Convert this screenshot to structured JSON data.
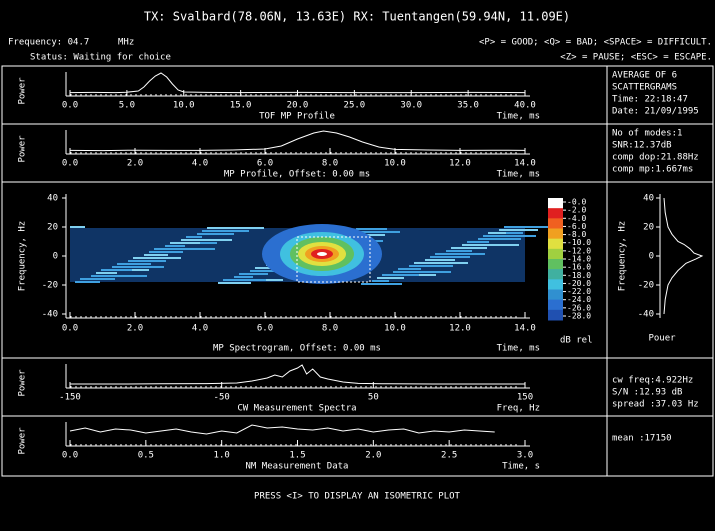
{
  "header": {
    "title": "TX: Svalbard(78.06N, 13.63E)   RX: Tuentangen(59.94N, 11.09E)",
    "frequency": "Frequency: 04.7",
    "frequency_unit": "MHz",
    "status": "Status: Waiting for choice",
    "keys_1": "<P> = GOOD; <Q> = BAD; <SPACE> = DIFFICULT.",
    "keys_2": "<Z> = PAUSE; <ESC> = ESCAPE."
  },
  "panels": [
    {
      "ylabel": "Power",
      "title": "TOF MP Profile",
      "xunit": "Time, ms",
      "xlim": [
        0,
        40
      ],
      "xticks": [
        {
          "value": 0,
          "label": "0.0"
        },
        {
          "value": 5,
          "label": "5.0"
        },
        {
          "value": 10,
          "label": "10.0"
        },
        {
          "value": 15,
          "label": "15.0"
        },
        {
          "value": 20,
          "label": "20.0"
        },
        {
          "value": 25,
          "label": "25.0"
        },
        {
          "value": 30,
          "label": "30.0"
        },
        {
          "value": 35,
          "label": "35.0"
        },
        {
          "value": 40,
          "label": "40.0"
        }
      ],
      "x": [
        0,
        2,
        4,
        5,
        6,
        6.5,
        7,
        7.5,
        8,
        8.5,
        9,
        9.5,
        10,
        12,
        15,
        20,
        25,
        30,
        35,
        40
      ],
      "values": [
        0.02,
        0.03,
        0.02,
        0.04,
        0.1,
        0.3,
        0.6,
        0.85,
        1,
        0.8,
        0.45,
        0.15,
        0.05,
        0.03,
        0.02,
        0.03,
        0.02,
        0.02,
        0.03,
        0.02
      ],
      "info": [
        "AVERAGE OF 6",
        "SCATTERGRAMS",
        "Time: 22:18:47",
        "Date: 21/09/1995"
      ]
    },
    {
      "ylabel": "Power",
      "title": "MP Profile, Offset: 0.00 ms",
      "xunit": "Time, ms",
      "xlim": [
        0,
        14
      ],
      "xticks": [
        {
          "value": 0,
          "label": "0.0"
        },
        {
          "value": 2,
          "label": "2.0"
        },
        {
          "value": 4,
          "label": "4.0"
        },
        {
          "value": 6,
          "label": "6.0"
        },
        {
          "value": 8,
          "label": "8.0"
        },
        {
          "value": 10,
          "label": "10.0"
        },
        {
          "value": 12,
          "label": "12.0"
        },
        {
          "value": 14,
          "label": "14.0"
        }
      ],
      "x": [
        0,
        1,
        2,
        3,
        4,
        5,
        6,
        6.5,
        7,
        7.5,
        7.8,
        8.2,
        8.6,
        9,
        9.5,
        10,
        11,
        12,
        13,
        14
      ],
      "values": [
        0.03,
        0.02,
        0.04,
        0.03,
        0.03,
        0.05,
        0.1,
        0.25,
        0.6,
        0.9,
        1,
        0.9,
        0.7,
        0.45,
        0.2,
        0.08,
        0.05,
        0.03,
        0.04,
        0.03
      ],
      "info": [
        "No of modes:1",
        "SNR:12.37dB",
        "comp dop:21.88Hz",
        "comp mp:1.667ms"
      ]
    },
    {
      "ylabel": "Frequency, Hz",
      "title": "MP Spectrogram, Offset: 0.00 ms",
      "xunit": "Time, ms",
      "xlim": [
        0,
        14
      ],
      "ylim": [
        -40,
        40
      ],
      "xticks": [
        {
          "value": 0,
          "label": "0.0"
        },
        {
          "value": 2,
          "label": "2.0"
        },
        {
          "value": 4,
          "label": "4.0"
        },
        {
          "value": 6,
          "label": "6.0"
        },
        {
          "value": 8,
          "label": "8.0"
        },
        {
          "value": 10,
          "label": "10.0"
        },
        {
          "value": 12,
          "label": "12.0"
        },
        {
          "value": 14,
          "label": "14.0"
        }
      ],
      "yticks": [
        40,
        20,
        0,
        -20,
        -40
      ],
      "colorbar": {
        "unit": "dB rel",
        "ticks": [
          {
            "value": 0,
            "label": "-0.0"
          },
          {
            "value": -2,
            "label": "-2.0"
          },
          {
            "value": -4,
            "label": "-4.0"
          },
          {
            "value": -6,
            "label": "-6.0"
          },
          {
            "value": -8,
            "label": "-8.0"
          },
          {
            "value": -10,
            "label": "-10.0"
          },
          {
            "value": -12,
            "label": "-12.0"
          },
          {
            "value": -14,
            "label": "-14.0"
          },
          {
            "value": -16,
            "label": "-16.0"
          },
          {
            "value": -18,
            "label": "-18.0"
          },
          {
            "value": -20,
            "label": "-20.0"
          },
          {
            "value": -22,
            "label": "-22.0"
          },
          {
            "value": -24,
            "label": "-24.0"
          },
          {
            "value": -26,
            "label": "-26.0"
          },
          {
            "value": -28,
            "label": "-28.0"
          }
        ]
      },
      "side": {
        "ylabel": "Frequency, Hz",
        "xlabel": "Pouer",
        "yticks": [
          40,
          20,
          0,
          -20,
          -40
        ],
        "freq": [
          -40,
          -30,
          -20,
          -15,
          -10,
          -5,
          -2,
          0,
          2,
          5,
          8,
          10,
          15,
          20,
          30,
          40
        ],
        "power": [
          0.05,
          0.08,
          0.15,
          0.25,
          0.4,
          0.6,
          0.85,
          1,
          0.8,
          0.7,
          0.55,
          0.4,
          0.25,
          0.15,
          0.08,
          0.05
        ]
      }
    },
    {
      "ylabel": "Power",
      "title": "CW Measurement Spectra",
      "xunit": "Freq, Hz",
      "xlim": [
        -150,
        150
      ],
      "xticks": [
        -150,
        -50,
        50,
        150
      ],
      "x": [
        -150,
        -120,
        -90,
        -60,
        -40,
        -30,
        -20,
        -15,
        -10,
        -5,
        0,
        3,
        6,
        10,
        15,
        20,
        30,
        40,
        60,
        90,
        120,
        150
      ],
      "values": [
        0.05,
        0.05,
        0.06,
        0.07,
        0.1,
        0.2,
        0.35,
        0.5,
        0.4,
        0.7,
        0.85,
        1,
        0.55,
        0.8,
        0.4,
        0.3,
        0.15,
        0.08,
        0.06,
        0.05,
        0.05,
        0.05
      ],
      "info": [
        "cw freq:4.922Hz",
        "S/N :12.93 dB",
        "spread :37.03 Hz"
      ]
    },
    {
      "ylabel": "Power",
      "title": "NM Measurement Data",
      "xunit": "Time, s",
      "xlim": [
        0,
        3
      ],
      "xticks": [
        {
          "value": 0,
          "label": "0.0"
        },
        {
          "value": 0.5,
          "label": "0.5"
        },
        {
          "value": 1,
          "label": "1.0"
        },
        {
          "value": 1.5,
          "label": "1.5"
        },
        {
          "value": 2,
          "label": "2.0"
        },
        {
          "value": 2.5,
          "label": "2.5"
        },
        {
          "value": 3,
          "label": "3.0"
        }
      ],
      "x": [
        0,
        0.1,
        0.2,
        0.3,
        0.4,
        0.5,
        0.6,
        0.7,
        0.8,
        0.9,
        1,
        1.1,
        1.2,
        1.3,
        1.4,
        1.5,
        1.6,
        1.7,
        1.8,
        1.9,
        2,
        2.1,
        2.2,
        2.3,
        2.4,
        2.5,
        2.6,
        2.7,
        2.8
      ],
      "values": [
        0.6,
        0.75,
        0.55,
        0.7,
        0.65,
        0.5,
        0.6,
        0.7,
        0.55,
        0.45,
        0.6,
        0.5,
        0.9,
        0.75,
        0.8,
        0.7,
        0.65,
        0.75,
        0.6,
        0.7,
        0.55,
        0.65,
        0.7,
        0.5,
        0.6,
        0.55,
        0.65,
        0.6,
        0.55
      ],
      "info": [
        "mean :17150"
      ]
    }
  ],
  "footer": "PRESS <I> TO DISPLAY AN ISOMETRIC PLOT"
}
